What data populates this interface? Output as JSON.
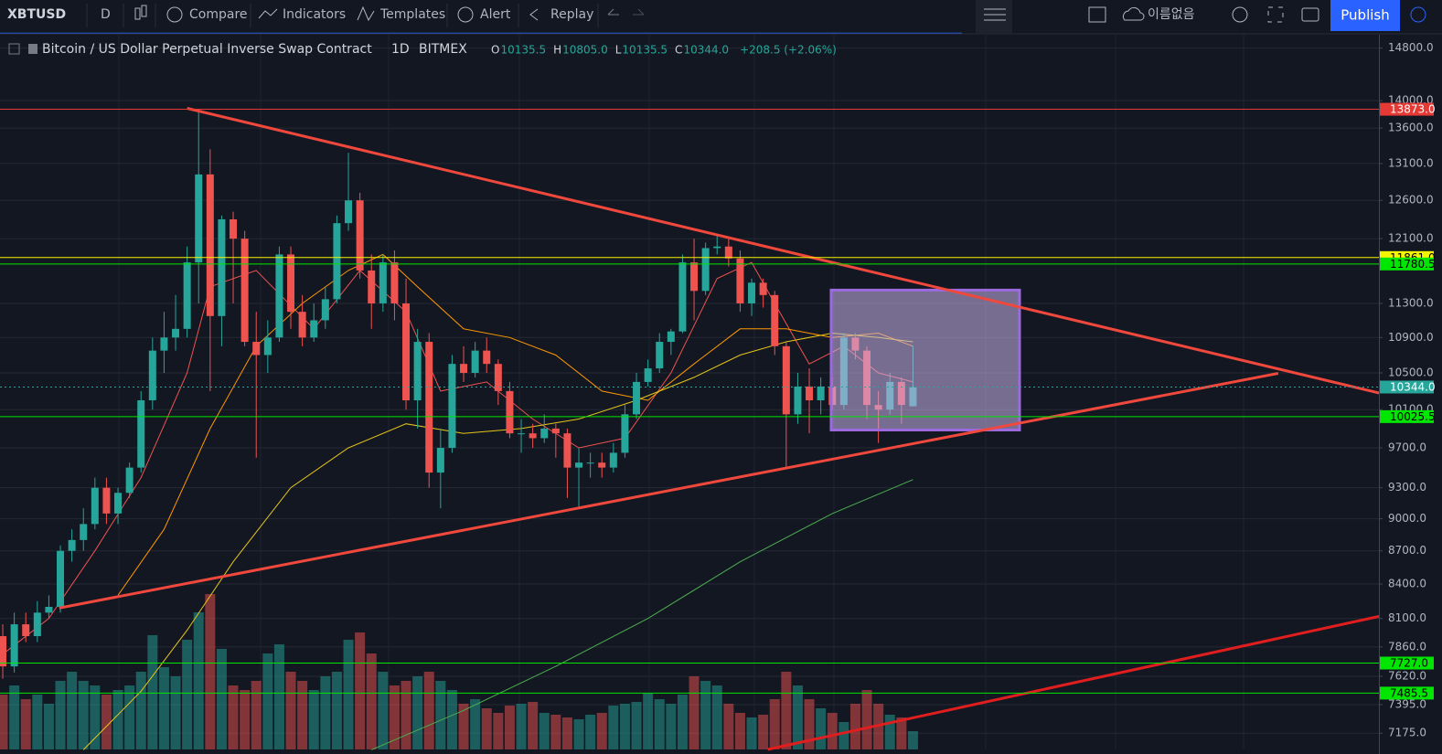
{
  "toolbar": {
    "symbol": "XBTUSD",
    "interval": "D",
    "compare": "Compare",
    "indicators": "Indicators",
    "templates": "Templates",
    "alert": "Alert",
    "replay": "Replay",
    "layout_name": "이름없음",
    "publish": "Publish"
  },
  "header": {
    "title": "Bitcoin / US Dollar Perpetual Inverse Swap Contract",
    "interval": "1D",
    "exchange": "BITMEX",
    "ohlc": [
      {
        "key": "O",
        "text": "10135.5"
      },
      {
        "key": "H",
        "text": "10805.0"
      },
      {
        "key": "L",
        "text": "10135.5"
      },
      {
        "key": "C",
        "text": "10344.0"
      }
    ],
    "change": "+208.5 (+2.06%)"
  },
  "chart_data": {
    "type": "candlestick",
    "log_scale": true,
    "grid": true,
    "up_color": "#26a69a",
    "down_color": "#ef5350",
    "xlim": [
      -0.24,
      119.44
    ],
    "ylim": [
      7053,
      15010
    ],
    "yticks": [
      {
        "value": 14800,
        "label": "14800.0"
      },
      {
        "value": 14000,
        "label": "14000.0"
      },
      {
        "value": 13600,
        "label": "13600.0"
      },
      {
        "value": 13100,
        "label": "13100.0"
      },
      {
        "value": 12600,
        "label": "12600.0"
      },
      {
        "value": 12100,
        "label": "12100.0"
      },
      {
        "value": 11300,
        "label": "11300.0"
      },
      {
        "value": 10900,
        "label": "10900.0"
      },
      {
        "value": 10500,
        "label": "10500.0"
      },
      {
        "value": 10100,
        "label": "10100.0"
      },
      {
        "value": 9700,
        "label": "9700.0"
      },
      {
        "value": 9300,
        "label": "9300.0"
      },
      {
        "value": 9000,
        "label": "9000.0"
      },
      {
        "value": 8700,
        "label": "8700.0"
      },
      {
        "value": 8400,
        "label": "8400.0"
      },
      {
        "value": 8100,
        "label": "8100.0"
      },
      {
        "value": 7860,
        "label": "7860.0"
      },
      {
        "value": 7620,
        "label": "7620.0"
      },
      {
        "value": 7395,
        "label": "7395.0"
      },
      {
        "value": 7175,
        "label": "7175.0"
      }
    ],
    "candles": [
      [
        7950,
        8050,
        7600,
        7700
      ],
      [
        7700,
        8150,
        7650,
        8050
      ],
      [
        8050,
        8150,
        7900,
        7950
      ],
      [
        7950,
        8250,
        7900,
        8150
      ],
      [
        8150,
        8300,
        8100,
        8200
      ],
      [
        8200,
        8750,
        8150,
        8700
      ],
      [
        8700,
        8900,
        8600,
        8800
      ],
      [
        8800,
        9100,
        8700,
        8950
      ],
      [
        8950,
        9400,
        8900,
        9300
      ],
      [
        9300,
        9400,
        8950,
        9050
      ],
      [
        9050,
        9300,
        8950,
        9250
      ],
      [
        9250,
        9550,
        9200,
        9500
      ],
      [
        9500,
        10300,
        9450,
        10200
      ],
      [
        10200,
        10900,
        10100,
        10750
      ],
      [
        10750,
        11200,
        10500,
        10900
      ],
      [
        10900,
        11400,
        10750,
        11000
      ],
      [
        11000,
        12000,
        10900,
        11800
      ],
      [
        11800,
        13873,
        11300,
        12950
      ],
      [
        12950,
        13300,
        10300,
        11150
      ],
      [
        11150,
        12400,
        10800,
        12350
      ],
      [
        12350,
        12450,
        11300,
        12100
      ],
      [
        12100,
        12200,
        10800,
        10850
      ],
      [
        10850,
        11200,
        9600,
        10700
      ],
      [
        10700,
        11100,
        10500,
        10900
      ],
      [
        10900,
        12000,
        10850,
        11900
      ],
      [
        11900,
        12000,
        11000,
        11200
      ],
      [
        11200,
        11400,
        10800,
        10900
      ],
      [
        10900,
        11300,
        10850,
        11100
      ],
      [
        11100,
        11500,
        11000,
        11350
      ],
      [
        11350,
        12400,
        11300,
        12300
      ],
      [
        12300,
        13250,
        12200,
        12600
      ],
      [
        12600,
        12700,
        11600,
        11700
      ],
      [
        11700,
        11900,
        11000,
        11300
      ],
      [
        11300,
        11900,
        11200,
        11800
      ],
      [
        11800,
        11950,
        11100,
        11300
      ],
      [
        11300,
        11600,
        10100,
        10200
      ],
      [
        10200,
        11000,
        9900,
        10850
      ],
      [
        10850,
        10950,
        9300,
        9450
      ],
      [
        9450,
        9900,
        9100,
        9700
      ],
      [
        9700,
        10700,
        9650,
        10600
      ],
      [
        10600,
        10800,
        10400,
        10500
      ],
      [
        10500,
        10850,
        10450,
        10750
      ],
      [
        10750,
        10900,
        10500,
        10600
      ],
      [
        10600,
        10650,
        10150,
        10300
      ],
      [
        10300,
        10400,
        9800,
        9850
      ],
      [
        9850,
        10000,
        9650,
        9850
      ],
      [
        9850,
        9950,
        9700,
        9800
      ],
      [
        9800,
        10050,
        9750,
        9900
      ],
      [
        9900,
        9950,
        9600,
        9850
      ],
      [
        9850,
        9900,
        9200,
        9500
      ],
      [
        9500,
        9700,
        9100,
        9550
      ],
      [
        9550,
        9650,
        9400,
        9550
      ],
      [
        9550,
        9650,
        9400,
        9500
      ],
      [
        9500,
        9750,
        9450,
        9650
      ],
      [
        9650,
        10150,
        9600,
        10050
      ],
      [
        10050,
        10500,
        10000,
        10400
      ],
      [
        10400,
        10650,
        10350,
        10550
      ],
      [
        10550,
        10950,
        10500,
        10850
      ],
      [
        10850,
        11000,
        10700,
        10970
      ],
      [
        10970,
        11900,
        10950,
        11800
      ],
      [
        11800,
        12100,
        11100,
        11450
      ],
      [
        11450,
        12050,
        11400,
        11980
      ],
      [
        11980,
        12150,
        11900,
        12000
      ],
      [
        12000,
        12100,
        11750,
        11850
      ],
      [
        11850,
        11950,
        11200,
        11300
      ],
      [
        11300,
        11600,
        11150,
        11550
      ],
      [
        11550,
        11600,
        11250,
        11400
      ],
      [
        11400,
        11450,
        10700,
        10800
      ],
      [
        10800,
        10850,
        9500,
        10050
      ],
      [
        10050,
        10500,
        9950,
        10350
      ],
      [
        10350,
        10550,
        9850,
        10200
      ],
      [
        10200,
        10450,
        10050,
        10350
      ],
      [
        10350,
        10450,
        10100,
        10150
      ],
      [
        10150,
        10950,
        10100,
        10900
      ],
      [
        10900,
        10950,
        10650,
        10750
      ],
      [
        10750,
        10800,
        10000,
        10150
      ],
      [
        10150,
        10300,
        9750,
        10100
      ],
      [
        10100,
        10500,
        10050,
        10400
      ],
      [
        10400,
        10450,
        9950,
        10150
      ],
      [
        10135.5,
        10805,
        10135.5,
        10344
      ]
    ],
    "volume": [
      60,
      70,
      55,
      60,
      50,
      75,
      85,
      75,
      70,
      60,
      65,
      70,
      85,
      125,
      90,
      80,
      120,
      150,
      170,
      110,
      70,
      65,
      75,
      105,
      115,
      85,
      75,
      65,
      80,
      85,
      120,
      128,
      105,
      85,
      70,
      75,
      80,
      85,
      75,
      65,
      50,
      55,
      45,
      40,
      48,
      50,
      52,
      40,
      38,
      35,
      33,
      38,
      40,
      48,
      50,
      52,
      62,
      55,
      50,
      60,
      80,
      75,
      70,
      50,
      40,
      35,
      38,
      55,
      85,
      70,
      55,
      45,
      40,
      30,
      50,
      65,
      50,
      38,
      35,
      20
    ],
    "ma_lines": [
      {
        "color": "#ef5350",
        "x": [
          0,
          4,
          8,
          12,
          16,
          18,
          22,
          27,
          31,
          35,
          38,
          42,
          46,
          50,
          54,
          58,
          62,
          65,
          67,
          70,
          73,
          76,
          79
        ],
        "values": [
          7800,
          8100,
          8700,
          9400,
          10500,
          11500,
          11700,
          11000,
          11700,
          11200,
          10300,
          10400,
          10000,
          9700,
          9800,
          10500,
          11600,
          11800,
          11300,
          10600,
          10800,
          10500,
          10400
        ]
      },
      {
        "color": "#ff9800",
        "x": [
          10,
          14,
          18,
          22,
          26,
          30,
          33,
          36,
          40,
          44,
          48,
          52,
          56,
          60,
          64,
          68,
          72,
          76,
          79
        ],
        "values": [
          8300,
          8900,
          9900,
          10800,
          11300,
          11700,
          11900,
          11500,
          11000,
          10900,
          10700,
          10300,
          10200,
          10600,
          11000,
          11000,
          10900,
          10950,
          10800
        ]
      },
      {
        "color": "#e6c619",
        "x": [
          7,
          12,
          16,
          20,
          25,
          30,
          35,
          40,
          45,
          50,
          55,
          60,
          64,
          68,
          72,
          76,
          79
        ],
        "values": [
          7050,
          7500,
          8000,
          8600,
          9300,
          9700,
          9950,
          9850,
          9900,
          10000,
          10200,
          10450,
          10700,
          10850,
          10950,
          10900,
          10850
        ]
      },
      {
        "color": "#4caf50",
        "x": [
          32,
          40,
          48,
          56,
          64,
          72,
          79
        ],
        "values": [
          7050,
          7350,
          7700,
          8100,
          8600,
          9050,
          9380
        ]
      }
    ],
    "trendlines": [
      {
        "color": "#f0483c",
        "points": [
          [
            16,
            13887
          ],
          [
            119.6,
            10275
          ]
        ]
      },
      {
        "color": "#f0483c",
        "points": [
          [
            4.9,
            8190
          ],
          [
            110.7,
            10495
          ]
        ]
      },
      {
        "color": "#e01e1e",
        "points": [
          [
            66.4,
            7053
          ],
          [
            119.6,
            8121
          ]
        ]
      }
    ],
    "box": {
      "x": [
        71.9,
        88.25
      ],
      "prices": [
        11460,
        9885
      ],
      "color": "#9c6ade"
    },
    "price_lines": [
      {
        "value": 13873,
        "label": "13873.0",
        "color": "#e53935",
        "text_color": "#ffffff"
      },
      {
        "value": 11861,
        "label": "11861.0",
        "color": "#f5f500",
        "text_color": "#000000"
      },
      {
        "value": 11780.5,
        "label": "11780.5",
        "color": "#00e600",
        "text_color": "#000000"
      },
      {
        "value": 10344,
        "label": "10344.0",
        "color": "#26a69a",
        "text_color": "#ffffff",
        "dotted": true
      },
      {
        "value": 10025.5,
        "label": "10025.5",
        "color": "#00e600",
        "text_color": "#000000"
      },
      {
        "value": 7727,
        "label": "7727.0",
        "color": "#00e600",
        "text_color": "#000000"
      },
      {
        "value": 7485.5,
        "label": "7485.5",
        "color": "#00e600",
        "text_color": "#000000"
      }
    ]
  }
}
